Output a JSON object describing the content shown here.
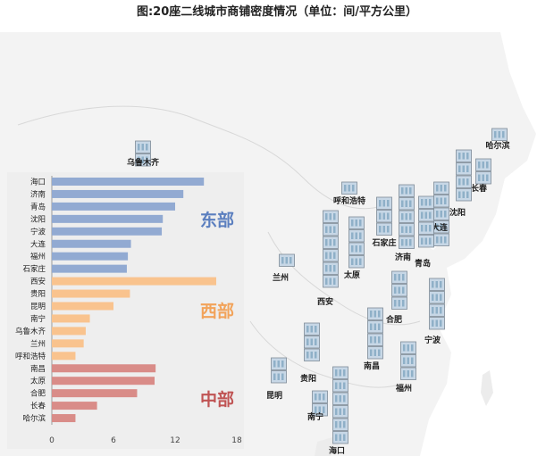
{
  "title": "图:20座二线城市商铺密度情况（单位：间/平方公里）",
  "colors": {
    "east": "#92aad2",
    "west": "#f9c38e",
    "central": "#d98c88",
    "east_label": "#5b7fbf",
    "west_label": "#f2a35a",
    "central_label": "#c05454",
    "panel_bg": "#eeeeee",
    "map_bg": "#f3f3f3",
    "sea": "#ffffff"
  },
  "chart_data": {
    "type": "bar",
    "orientation": "horizontal",
    "title": "图:20座二线城市商铺密度情况（单位：间/平方公里）",
    "xlim": [
      0,
      18
    ],
    "xticks": [
      "0",
      "6",
      "12",
      "18"
    ],
    "grid": false,
    "groups": [
      {
        "name": "东部",
        "color_key": "east",
        "label_color_key": "east_label",
        "categories": [
          "海口",
          "济南",
          "青岛",
          "沈阳",
          "宁波",
          "大连",
          "福州",
          "石家庄"
        ],
        "values": [
          14.8,
          12.8,
          12.0,
          10.8,
          10.7,
          7.7,
          7.4,
          7.3
        ]
      },
      {
        "name": "西部",
        "color_key": "west",
        "label_color_key": "west_label",
        "categories": [
          "西安",
          "贵阳",
          "昆明",
          "南宁",
          "乌鲁木齐",
          "兰州",
          "呼和浩特"
        ],
        "values": [
          16.0,
          7.6,
          6.0,
          3.7,
          3.3,
          3.1,
          2.3
        ]
      },
      {
        "name": "中部",
        "color_key": "central",
        "label_color_key": "central_label",
        "categories": [
          "南昌",
          "太原",
          "合肥",
          "长春",
          "哈尔滨"
        ],
        "values": [
          10.1,
          10.0,
          8.3,
          4.4,
          2.3
        ]
      }
    ]
  },
  "map": {
    "cities": [
      {
        "name": "乌鲁木齐",
        "floors": 2
      },
      {
        "name": "哈尔滨",
        "floors": 1
      },
      {
        "name": "长春",
        "floors": 2
      },
      {
        "name": "沈阳",
        "floors": 4
      },
      {
        "name": "大连",
        "floors": 5
      },
      {
        "name": "呼和浩特",
        "floors": 1
      },
      {
        "name": "石家庄",
        "floors": 3
      },
      {
        "name": "济南",
        "floors": 5
      },
      {
        "name": "青岛",
        "floors": 4
      },
      {
        "name": "兰州",
        "floors": 1
      },
      {
        "name": "太原",
        "floors": 4
      },
      {
        "name": "西安",
        "floors": 6
      },
      {
        "name": "合肥",
        "floors": 3
      },
      {
        "name": "宁波",
        "floors": 4
      },
      {
        "name": "南昌",
        "floors": 4
      },
      {
        "name": "福州",
        "floors": 3
      },
      {
        "name": "贵阳",
        "floors": 3
      },
      {
        "name": "昆明",
        "floors": 2
      },
      {
        "name": "南宁",
        "floors": 2
      },
      {
        "name": "海口",
        "floors": 6
      }
    ]
  }
}
